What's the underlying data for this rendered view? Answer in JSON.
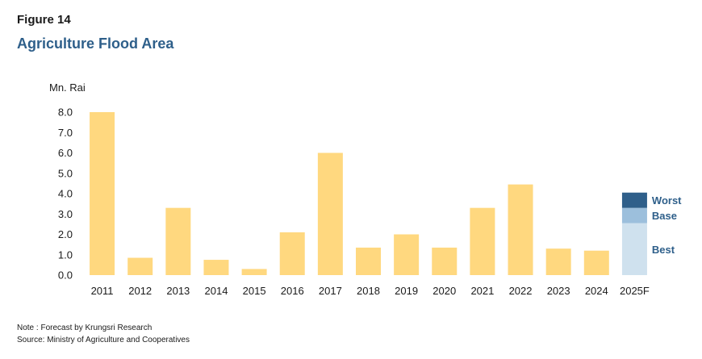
{
  "header": {
    "figure_label": "Figure  14",
    "title": "Agriculture Flood Area"
  },
  "footer": {
    "note": "Note : Forecast by Krungsri Research",
    "source": "Source: Ministry of Agriculture and Cooperatives"
  },
  "colors": {
    "bar": "#ffd87f",
    "best": "#cfe1ee",
    "base": "#9cbfdc",
    "worst": "#2f5f8a",
    "title": "#2e5f8a",
    "scenario_label": "#2e5f8a"
  },
  "chart_data": {
    "type": "bar",
    "title": "Agriculture Flood Area",
    "ylabel": "Mn. Rai",
    "ylim": [
      0,
      8.0
    ],
    "yticks": [
      "0.0",
      "1.0",
      "2.0",
      "3.0",
      "4.0",
      "5.0",
      "6.0",
      "7.0",
      "8.0"
    ],
    "categories": [
      "2011",
      "2012",
      "2013",
      "2014",
      "2015",
      "2016",
      "2017",
      "2018",
      "2019",
      "2020",
      "2021",
      "2022",
      "2023",
      "2024",
      "2025F"
    ],
    "values": [
      8.0,
      0.85,
      3.3,
      0.75,
      0.3,
      2.1,
      6.0,
      1.35,
      2.0,
      1.35,
      3.3,
      4.45,
      1.3,
      1.2,
      null
    ],
    "forecast": {
      "category": "2025F",
      "scenarios": [
        {
          "name": "Best",
          "value": 2.55
        },
        {
          "name": "Base",
          "value": 3.3
        },
        {
          "name": "Worst",
          "value": 4.05
        }
      ]
    },
    "grid": false,
    "legend": "none"
  }
}
